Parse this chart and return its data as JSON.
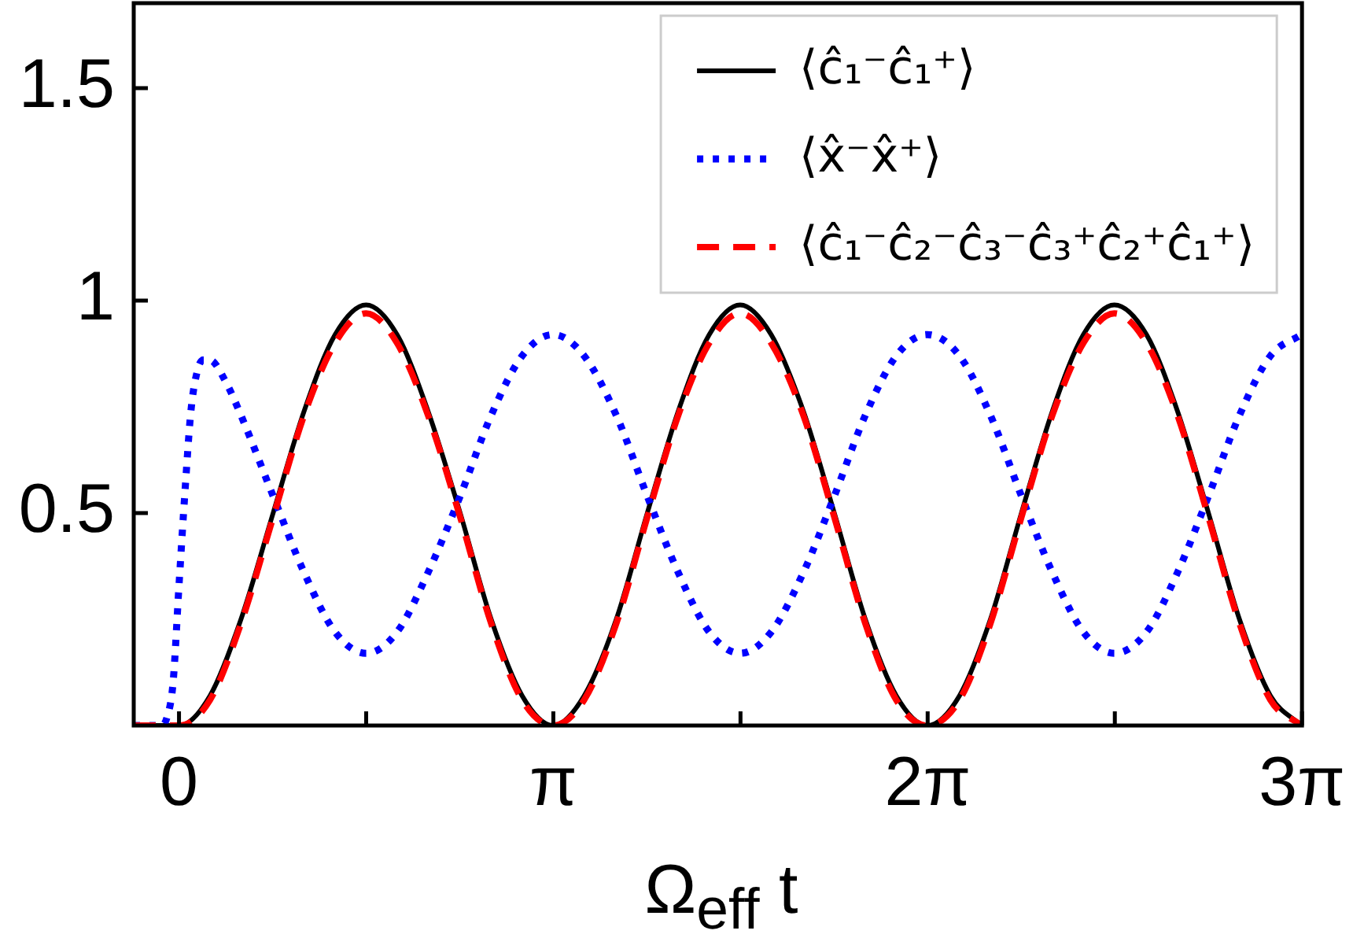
{
  "chart_data": {
    "type": "line",
    "xlabel": "Ω$_{eff}$ t",
    "xlim": [
      -0.38,
      9.4248
    ],
    "ylim": [
      0,
      1.7
    ],
    "xticks": [
      0,
      {
        "value": 1.5708,
        "label": null
      },
      {
        "value": 3.1416,
        "label": "π"
      },
      {
        "value": 4.7124,
        "label": null
      },
      {
        "value": 6.2832,
        "label": "2π"
      },
      {
        "value": 7.854,
        "label": null
      },
      {
        "value": 9.4248,
        "label": "3π"
      }
    ],
    "yticks": [
      0.5,
      1,
      1.5
    ],
    "legend": "top right",
    "series": [
      {
        "name": "⟨ĉ₁⁻ĉ₁⁺⟩",
        "color": "#000000",
        "line_style": "solid",
        "x": [
          -0.38,
          0,
          0.26,
          0.52,
          0.79,
          1.05,
          1.31,
          1.57,
          1.83,
          2.09,
          2.36,
          2.62,
          2.88,
          3.14,
          3.4,
          3.67,
          3.93,
          4.19,
          4.45,
          4.71,
          4.97,
          5.24,
          5.5,
          5.76,
          6.02,
          6.28,
          6.55,
          6.81,
          7.07,
          7.33,
          7.59,
          7.85,
          8.12,
          8.38,
          8.64,
          8.9,
          9.16,
          9.42
        ],
        "values": [
          0,
          0,
          0.07,
          0.25,
          0.5,
          0.74,
          0.92,
          0.99,
          0.92,
          0.74,
          0.5,
          0.25,
          0.07,
          0,
          0.07,
          0.25,
          0.5,
          0.74,
          0.92,
          0.99,
          0.92,
          0.74,
          0.5,
          0.25,
          0.07,
          0,
          0.07,
          0.25,
          0.5,
          0.74,
          0.92,
          0.99,
          0.92,
          0.74,
          0.5,
          0.25,
          0.07,
          0
        ]
      },
      {
        "name": "⟨x̂⁻x̂⁺⟩",
        "color": "#0000ff",
        "line_style": "dotted",
        "x": [
          -0.38,
          -0.15,
          -0.1,
          -0.05,
          0,
          0.05,
          0.1,
          0.15,
          0.2,
          0.26,
          0.39,
          0.52,
          0.79,
          1.05,
          1.31,
          1.57,
          1.83,
          2.09,
          2.36,
          2.62,
          2.88,
          3.14,
          3.4,
          3.67,
          3.93,
          4.19,
          4.45,
          4.71,
          4.97,
          5.24,
          5.5,
          5.76,
          6.02,
          6.28,
          6.55,
          6.81,
          7.07,
          7.33,
          7.59,
          7.85,
          8.12,
          8.38,
          8.64,
          8.9,
          9.16,
          9.42
        ],
        "values": [
          0,
          0,
          0.02,
          0.1,
          0.33,
          0.55,
          0.74,
          0.83,
          0.86,
          0.86,
          0.81,
          0.73,
          0.54,
          0.36,
          0.22,
          0.17,
          0.22,
          0.36,
          0.54,
          0.73,
          0.87,
          0.92,
          0.87,
          0.73,
          0.54,
          0.36,
          0.22,
          0.17,
          0.22,
          0.36,
          0.54,
          0.73,
          0.87,
          0.92,
          0.87,
          0.73,
          0.54,
          0.36,
          0.22,
          0.17,
          0.22,
          0.36,
          0.54,
          0.73,
          0.87,
          0.92
        ]
      },
      {
        "name": "⟨ĉ₁⁻ĉ₂⁻ĉ₃⁻ĉ₃⁺ĉ₂⁺ĉ₁⁺⟩",
        "color": "#ff0000",
        "line_style": "dashed",
        "x": [
          -0.38,
          0,
          0.26,
          0.52,
          0.79,
          1.05,
          1.31,
          1.57,
          1.83,
          2.09,
          2.36,
          2.62,
          2.88,
          3.14,
          3.4,
          3.67,
          3.93,
          4.19,
          4.45,
          4.71,
          4.97,
          5.24,
          5.5,
          5.76,
          6.02,
          6.28,
          6.55,
          6.81,
          7.07,
          7.33,
          7.59,
          7.85,
          8.12,
          8.38,
          8.64,
          8.9,
          9.16,
          9.42
        ],
        "values": [
          0,
          0,
          0.06,
          0.24,
          0.49,
          0.73,
          0.9,
          0.97,
          0.9,
          0.73,
          0.49,
          0.24,
          0.06,
          0,
          0.06,
          0.24,
          0.49,
          0.73,
          0.9,
          0.97,
          0.9,
          0.73,
          0.49,
          0.24,
          0.06,
          0,
          0.06,
          0.24,
          0.49,
          0.73,
          0.9,
          0.97,
          0.9,
          0.73,
          0.49,
          0.24,
          0.06,
          0
        ]
      }
    ]
  }
}
